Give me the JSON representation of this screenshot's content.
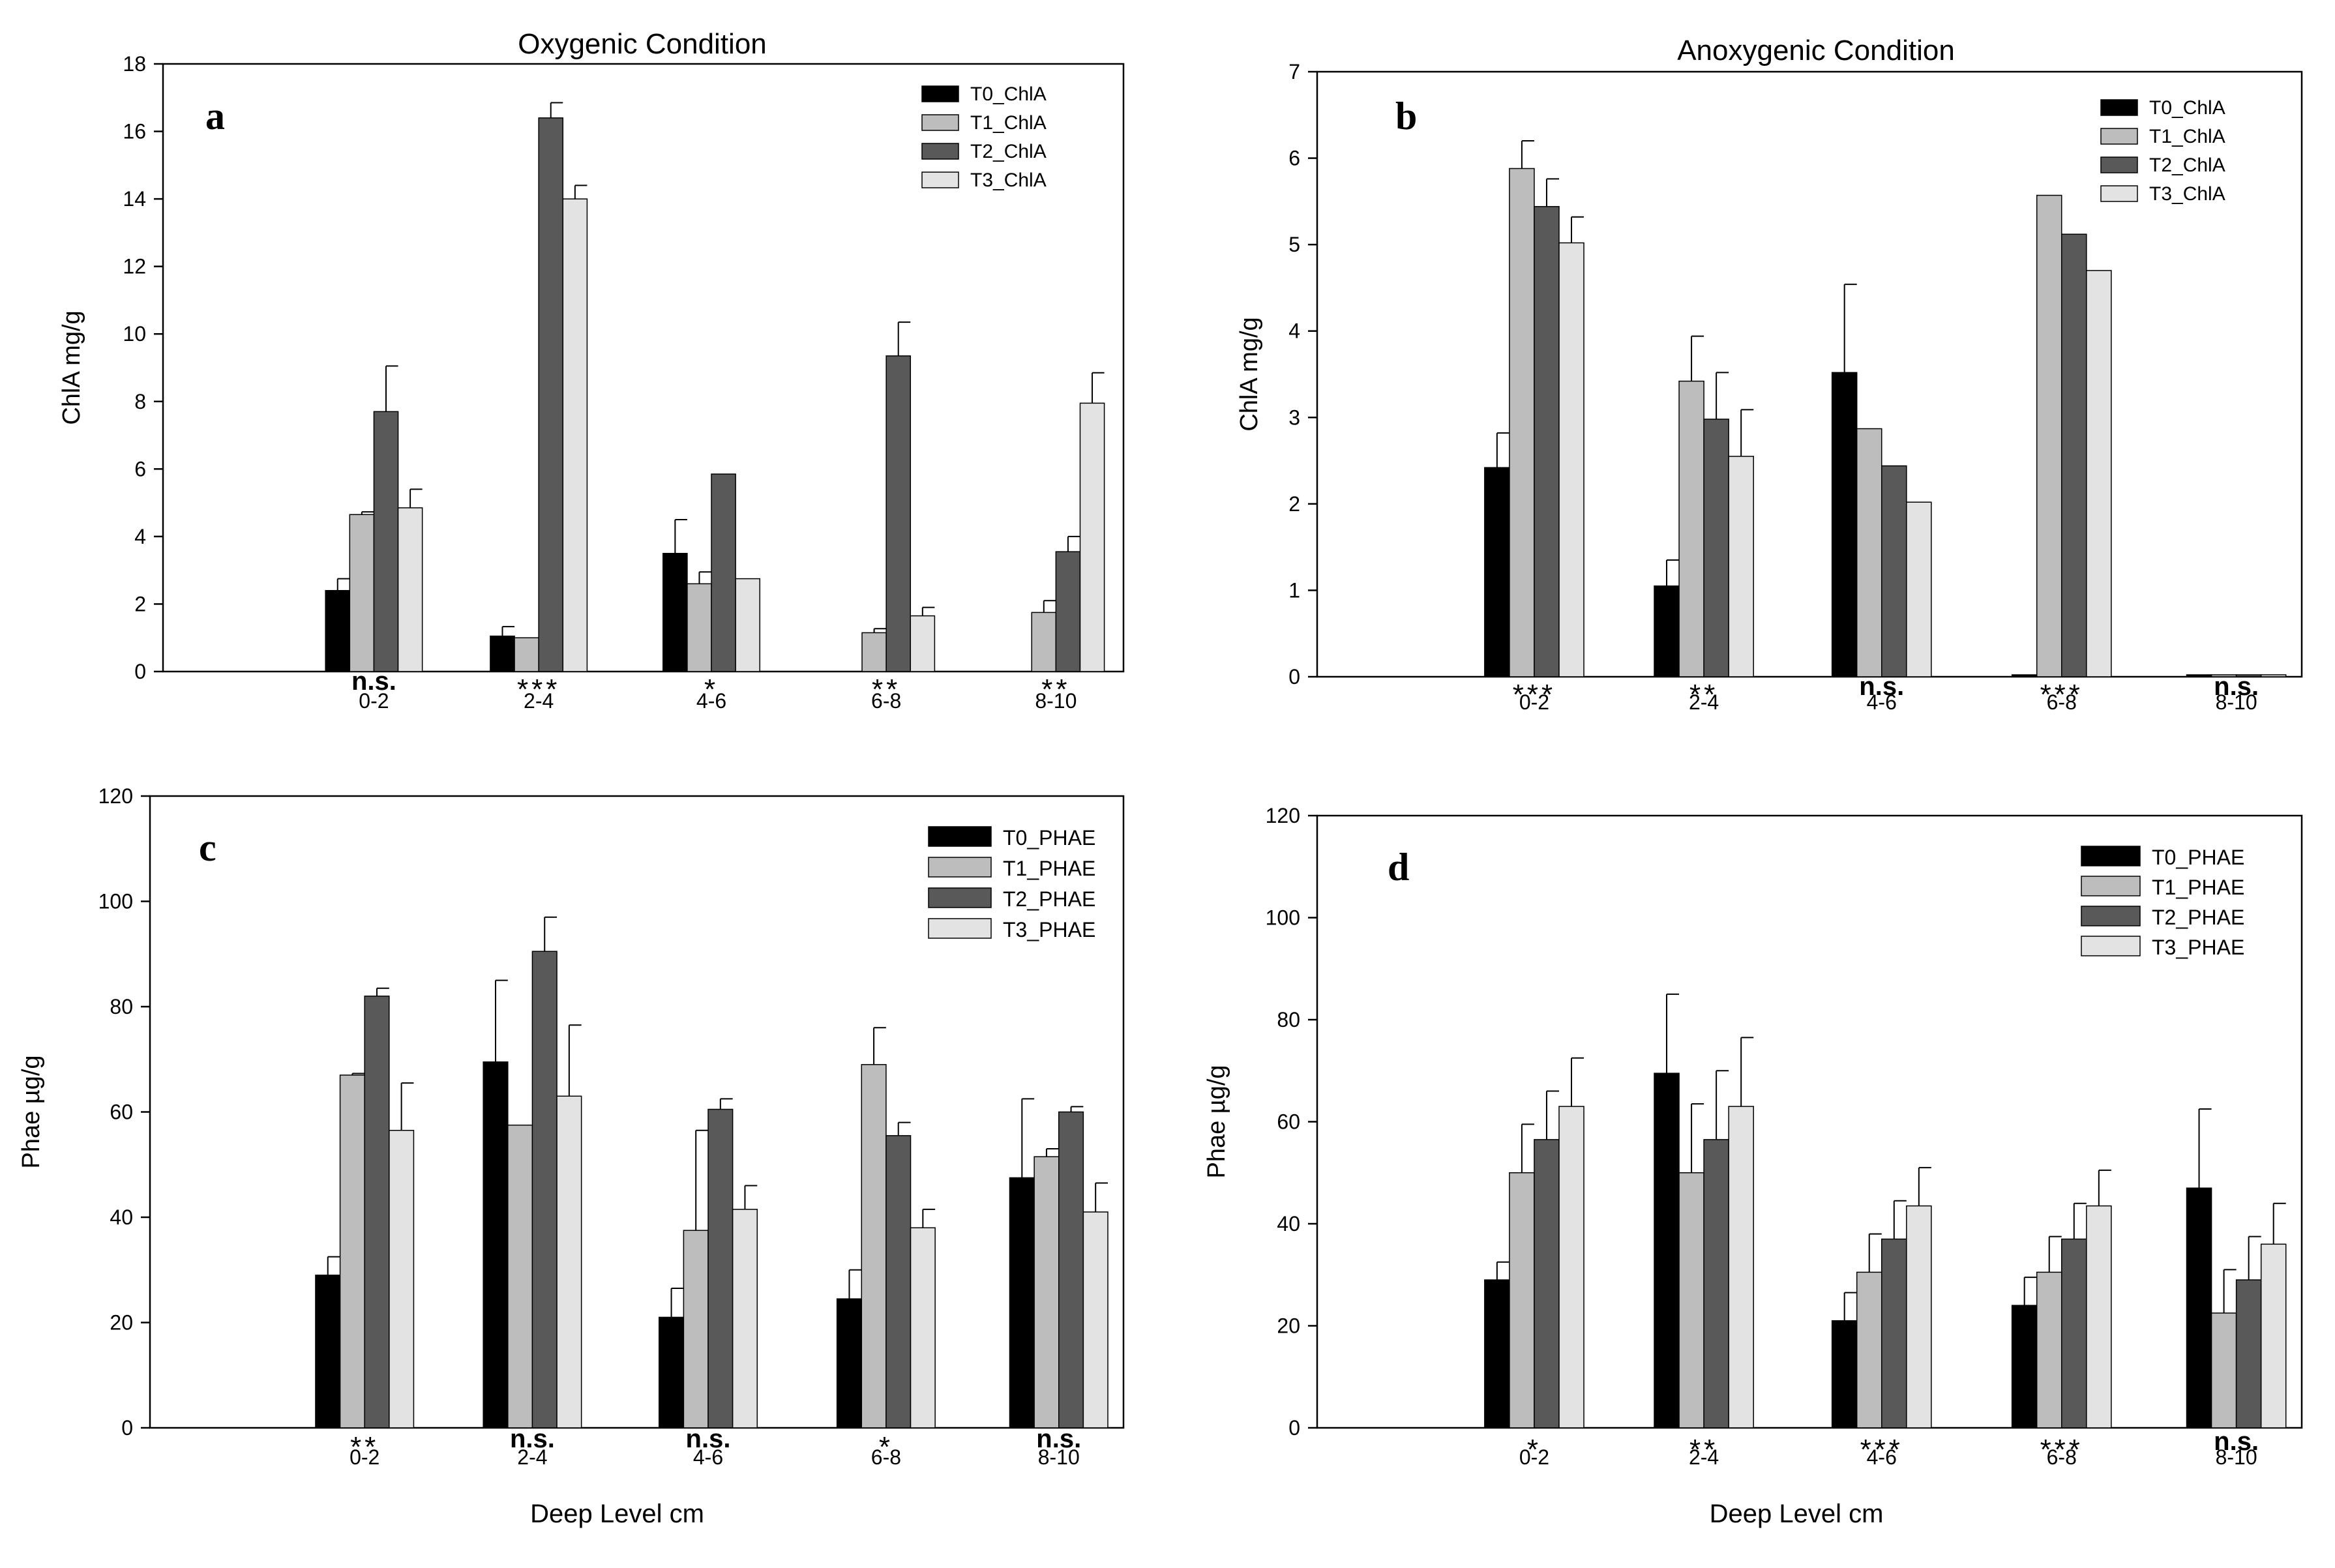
{
  "series_colors": {
    "T0": "#000000",
    "T1": "#bdbdbd",
    "T2": "#595959",
    "T3": "#e3e3e3"
  },
  "chart_data": [
    {
      "id": "a",
      "type": "bar",
      "panel_letter": "a",
      "title": "Oxygenic Condition",
      "xlabel": "",
      "ylabel": "ChlA mg/g",
      "ylim": [
        0,
        18
      ],
      "yticks": [
        0,
        2,
        4,
        6,
        8,
        10,
        12,
        14,
        16,
        18
      ],
      "categories": [
        "0-2",
        "2-4",
        "4-6",
        "6-8",
        "8-10"
      ],
      "significance": [
        "n.s.",
        "***",
        "*",
        "**",
        "**"
      ],
      "legend_position": "top-right",
      "series": [
        {
          "name": "T0_ChlA",
          "color_key": "T0",
          "values": [
            2.4,
            1.05,
            3.5,
            0,
            0
          ],
          "errors": [
            0.35,
            0.28,
            1.0,
            0,
            0
          ]
        },
        {
          "name": "T1_ChlA",
          "color_key": "T1",
          "values": [
            4.65,
            1.0,
            2.6,
            1.15,
            1.75
          ],
          "errors": [
            0.08,
            0,
            0.35,
            0.12,
            0.35
          ]
        },
        {
          "name": "T2_ChlA",
          "color_key": "T2",
          "values": [
            7.7,
            16.4,
            5.85,
            9.35,
            3.55
          ],
          "errors": [
            1.35,
            0.45,
            0,
            1.0,
            0.45
          ]
        },
        {
          "name": "T3_ChlA",
          "color_key": "T3",
          "values": [
            4.85,
            14.0,
            2.75,
            1.65,
            7.95
          ],
          "errors": [
            0.55,
            0.4,
            0,
            0.25,
            0.9
          ]
        }
      ]
    },
    {
      "id": "b",
      "type": "bar",
      "panel_letter": "b",
      "title": "Anoxygenic Condition",
      "xlabel": "",
      "ylabel": "ChlA  mg/g",
      "ylim": [
        0,
        7
      ],
      "yticks": [
        0,
        1,
        2,
        3,
        4,
        5,
        6,
        7
      ],
      "categories": [
        "0-2",
        "2-4",
        "4-6",
        "6-8",
        "8-10"
      ],
      "significance": [
        "***",
        "**",
        "n.s.",
        "***",
        "n.s."
      ],
      "legend_position": "top-right",
      "series": [
        {
          "name": "T0_ChlA",
          "color_key": "T0",
          "values": [
            2.42,
            1.05,
            3.52,
            0,
            0
          ],
          "errors": [
            0.4,
            0.3,
            1.02,
            0,
            0
          ]
        },
        {
          "name": "T1_ChlA",
          "color_key": "T1",
          "values": [
            5.88,
            3.42,
            2.87,
            5.57,
            0
          ],
          "errors": [
            0.32,
            0.52,
            0,
            0,
            0
          ]
        },
        {
          "name": "T2_ChlA",
          "color_key": "T2",
          "values": [
            5.44,
            2.98,
            2.44,
            5.12,
            0
          ],
          "errors": [
            0.32,
            0.54,
            0,
            0,
            0
          ]
        },
        {
          "name": "T3_ChlA",
          "color_key": "T3",
          "values": [
            5.02,
            2.55,
            2.02,
            4.7,
            0
          ],
          "errors": [
            0.3,
            0.54,
            0,
            0,
            0
          ]
        }
      ]
    },
    {
      "id": "c",
      "type": "bar",
      "panel_letter": "c",
      "title": "",
      "xlabel": "Deep Level cm",
      "ylabel": "Phae µg/g",
      "ylim": [
        0,
        120
      ],
      "yticks": [
        0,
        20,
        40,
        60,
        80,
        100,
        120
      ],
      "categories": [
        "0-2",
        "2-4",
        "4-6",
        "6-8",
        "8-10"
      ],
      "significance": [
        "**",
        "n.s.",
        "n.s.",
        "*",
        "n.s."
      ],
      "legend_position": "top-right",
      "series": [
        {
          "name": "T0_PHAE",
          "color_key": "T0",
          "values": [
            29.0,
            69.5,
            21.0,
            24.5,
            47.5
          ],
          "errors": [
            3.5,
            15.5,
            5.5,
            5.5,
            15.0
          ]
        },
        {
          "name": "T1_PHAE",
          "color_key": "T1",
          "values": [
            67.0,
            57.5,
            37.5,
            69.0,
            51.5
          ],
          "errors": [
            0.3,
            0,
            19.0,
            7.0,
            1.5
          ]
        },
        {
          "name": "T2_PHAE",
          "color_key": "T2",
          "values": [
            82.0,
            90.5,
            60.5,
            55.5,
            60.0
          ],
          "errors": [
            1.5,
            6.5,
            2.0,
            2.5,
            1.0
          ]
        },
        {
          "name": "T3_PHAE",
          "color_key": "T3",
          "values": [
            56.5,
            63.0,
            41.5,
            38.0,
            41.0
          ],
          "errors": [
            9.0,
            13.5,
            4.5,
            3.5,
            5.5
          ]
        }
      ]
    },
    {
      "id": "d",
      "type": "bar",
      "panel_letter": "d",
      "title": "",
      "xlabel": "Deep Level cm",
      "ylabel": "Phae µg/g",
      "ylim": [
        0,
        120
      ],
      "yticks": [
        0,
        20,
        40,
        60,
        80,
        100,
        120
      ],
      "categories": [
        "0-2",
        "2-4",
        "4-6",
        "6-8",
        "8-10"
      ],
      "significance": [
        "*",
        "**",
        "***",
        "***",
        "n.s."
      ],
      "legend_position": "top-right",
      "series": [
        {
          "name": "T0_PHAE",
          "color_key": "T0",
          "values": [
            29.0,
            69.5,
            21.0,
            24.0,
            47.0
          ],
          "errors": [
            3.5,
            15.5,
            5.5,
            5.5,
            15.5
          ]
        },
        {
          "name": "T1_PHAE",
          "color_key": "T1",
          "values": [
            50.0,
            50.0,
            30.5,
            30.5,
            22.5
          ],
          "errors": [
            9.5,
            13.5,
            7.5,
            7.0,
            8.5
          ]
        },
        {
          "name": "T2_PHAE",
          "color_key": "T2",
          "values": [
            56.5,
            56.5,
            37.0,
            37.0,
            29.0
          ],
          "errors": [
            9.5,
            13.5,
            7.5,
            7.0,
            8.5
          ]
        },
        {
          "name": "T3_PHAE",
          "color_key": "T3",
          "values": [
            63.0,
            63.0,
            43.5,
            43.5,
            36.0
          ],
          "errors": [
            9.5,
            13.5,
            7.5,
            7.0,
            8.0
          ]
        }
      ]
    }
  ]
}
